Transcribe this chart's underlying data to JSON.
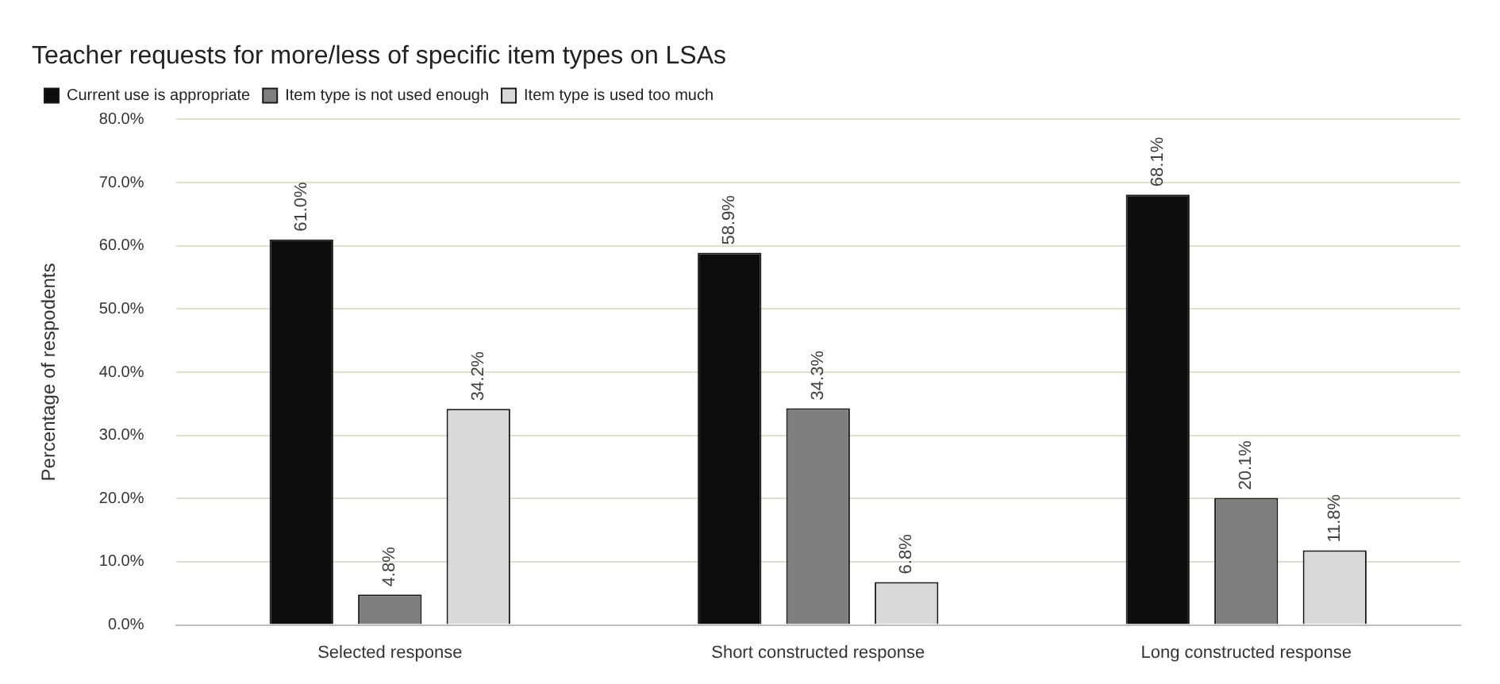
{
  "chart_data": {
    "type": "bar",
    "title": "Teacher requests for more/less of specific item types on LSAs",
    "ylabel": "Percentage of respodents",
    "categories": [
      "Selected response",
      "Short constructed response",
      "Long constructed response"
    ],
    "series": [
      {
        "name": "Current use is appropriate",
        "color": "#0d0d0d",
        "values": [
          61.0,
          58.9,
          68.1
        ],
        "value_labels": [
          "61.0%",
          "58.9%",
          "68.1%"
        ]
      },
      {
        "name": "Item type is not used enough",
        "color": "#7f7f7f",
        "values": [
          4.8,
          34.3,
          20.1
        ],
        "value_labels": [
          "4.8%",
          "34.3%",
          "20.1%"
        ]
      },
      {
        "name": "Item type is used too much",
        "color": "#d9d9d9",
        "values": [
          34.2,
          6.8,
          11.8
        ],
        "value_labels": [
          "34.2%",
          "6.8%",
          "11.8%"
        ]
      }
    ],
    "ylim": [
      0,
      80
    ],
    "yticks": [
      {
        "value": 0,
        "label": "0.0%"
      },
      {
        "value": 10,
        "label": "10.0%"
      },
      {
        "value": 20,
        "label": "20.0%"
      },
      {
        "value": 30,
        "label": "30.0%"
      },
      {
        "value": 40,
        "label": "40.0%"
      },
      {
        "value": 50,
        "label": "50.0%"
      },
      {
        "value": 60,
        "label": "60.0%"
      },
      {
        "value": 70,
        "label": "70.0%"
      },
      {
        "value": 80,
        "label": "80.0%"
      }
    ],
    "grid": "y",
    "legend": "top left"
  }
}
